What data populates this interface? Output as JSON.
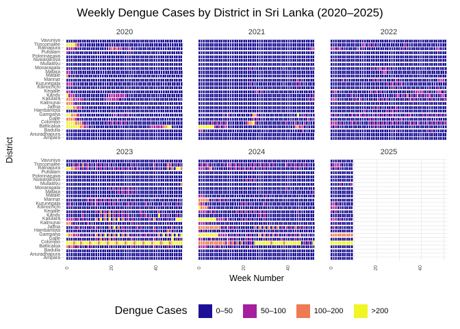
{
  "title": "Weekly Dengue Cases by District in Sri Lanka (2020–2025)",
  "x_axis_label": "Week Number",
  "y_axis_label": "District",
  "x_ticks": [
    "0",
    "20",
    "40"
  ],
  "legend": {
    "title": "Dengue Cases",
    "items": [
      {
        "label": "0–50",
        "color": "#1c1196"
      },
      {
        "label": "50–100",
        "color": "#a51e9d"
      },
      {
        "label": "100–200",
        "color": "#ee7b51"
      },
      {
        "label": ">200",
        "color": "#f0f524"
      }
    ]
  },
  "chart_data": {
    "type": "heatmap",
    "facet_by": "year",
    "x": "week_number",
    "x_range": [
      1,
      52
    ],
    "x_tick_weeks": [
      0,
      20,
      40
    ],
    "x_minor_grid_weeks": [
      0,
      10,
      20,
      30,
      40,
      50
    ],
    "y": "district",
    "grid": true,
    "legend_position": "bottom",
    "districts_top_to_bottom": [
      "Vavuniya",
      "Trincomalee",
      "Ratnapura",
      "Puttalam",
      "Polonnaruwa",
      "NuwaraEliya",
      "Mullaitivu",
      "Monaragala",
      "Matara",
      "Matale",
      "Mannar",
      "Kurunegala",
      "Kilinochchi",
      "Kegalle",
      "Kandy",
      "Kalutara",
      "Kalmunai",
      "Jaffna",
      "Hambantota",
      "Gampaha",
      "Galle",
      "Colombo",
      "Batticaloa",
      "Badulla",
      "Anuradhapura",
      "Ampara"
    ],
    "value_bins": [
      "0–50",
      "50–100",
      "100–200",
      ">200"
    ],
    "bin_colors": {
      "0": "#1c1196",
      "1": "#a51e9d",
      "2": "#ee7b51",
      "3": "#f0f524"
    },
    "encoding": "One character per week per district row: 0 = 0–50 cases, 1 = 50–100, 2 = 100–200, 3 = >200. 2025 has data for weeks 1–10 only.",
    "facets": [
      {
        "year": "2020",
        "rows": [
          "0000000000000000000000000000000000000000000000000000",
          "3333210000000000000000000000000000000000000000000000",
          "1111000000000000000121211001100000000000000000000000",
          "1000000000000000000000000000000000000000000000000000",
          "0000000000000000000000000000000000000000000000000000",
          "0000000000000000000000000000000000000000000000000000",
          "0000000000000000000000000000000000000000000000000000",
          "0000000000000000000000000000000000000000000000000000",
          "1100000000000000000000000000000000000000000000000000",
          "2000000000000000000000000000000000000000000000000000",
          "0000000000000000000000000000000000000000000000000000",
          "1110000000000000000000000000000000000000000000000000",
          "0000000000000000000000000000000000000000000000000000",
          "1100000000000000000000000000000000000000000000000000",
          "3111000000000000000111111110000000000000000000000000",
          "2221111100000000011111110000000000000000000000000000",
          "2221000000000000000000000000000000000000000000000000",
          "3332211000000000000000000000000000000000000000000000",
          "0000000000000000000000000000000000000000000000000000",
          "3322210000000000000001100101000000000000000000000000",
          "2222100000000000000000000000000000000000000000000000",
          "3333222100000000001010101010000000000000000000000000",
          "3333332211000000000000000000000000000111111223300000",
          "0000000000000000000000000000000000000000000000000000",
          "0000000000000000000000000000000000000000000000000000",
          "0000000000000000000000000000000000000000000000000000"
        ]
      },
      {
        "year": "2021",
        "rows": [
          "0000000000000000000000000000000000000000000000000000",
          "0000000000000000000000000000000000000000000000000000",
          "0000000000000000000000000000000000000000000000000011",
          "0000000000000000000000000000000000000000000000000000",
          "0000000000000000000000000000000000000000000000000000",
          "0000000000000000000000000000000000000000000000000000",
          "0000000000000000000000000000000000000000000000000000",
          "0000000000000000000000010000000000000000000000000000",
          "0000000000000000000000000000000000000000000000000000",
          "0000000000000000000000000000000000000000000000000000",
          "0000000000000000000000000000000000000000000010000000",
          "0000000000000000000000010000000000000000000101000000",
          "0000000000000000000000000000000000000000000000000000",
          "0000000000000000000000000110100000000000000000000000",
          "0000000000000000000000000000000000000000000000000001",
          "0000000000000000000000000000000000000000000000000101",
          "0000000000000000000000000000000000000000000000000000",
          "0000000000000000000000000000000000000000000000000000",
          "0000000000000000000000000000000000000000000000000000",
          "0000000000010100000000002210000000000000000030010000",
          "0000000000000000000000001010000000000000000000000100",
          "0000101010101000000001223100000000000001000100010000",
          "3333333101011000000000000000000000000000000221100000",
          "1100000000000000000000000000000000000000000000100000",
          "0000000000000000000000000000000000000000000000000000",
          "0000000000000000000000000000000000000000000000000000"
        ]
      },
      {
        "year": "2022",
        "rows": [
          "0000000000000000000000000000000000000000000000000000",
          "0000000000000011010100000000000001000000000000000000",
          "1101100000001000000000000000000010000000000000011000",
          "0000000000000000000000000000000000000000000000000000",
          "0000000000000000000000000000000000000000000000000000",
          "0000000000000000000000000000000000000000000000000000",
          "0000000000000000000000000000000000000000000000000000",
          "0000000000000000000101101010000000000000000000000000",
          "0000000000000000000000011000000000000000000000000000",
          "0000000000000000000000000000000000000000000000000000",
          "0000010000000000000101000000010000000000000000001110",
          "0000000000000000000000000101010100000000000000000000",
          "0000000000000000000000000000100000000000000000001000",
          "0110000000000000001010100000000000000011110100011100",
          "0000000001000000000000000000011010201010100110000110",
          "1110000000010100000001010100000000010100000101000001",
          "0000000000000000000000000000000000000000000000000000",
          "0000000000000000000101000000010000000000000000000000",
          "0000000000000001000000000101010000000000000000000000",
          "1010000001010101000101010101000001010000010101010100",
          "0000000000000000010100000000010100000000000000000000",
          "1110100001010000010101010101010000010101000101010101",
          "1010000000000000000101000000000000000000000000000000",
          "0000000000000000000000000000010000000000000101000000",
          "0000000000000000000000000000000000000000000000000000",
          "0000000000000000000000000000000000000000000000000000"
        ]
      },
      {
        "year": "2023",
        "rows": [
          "0000000000000000000000000000000000000000000000000000",
          "0001010201000101000100000000010000000001000002100100",
          "3322110101000101010001010101000100000001000002020332",
          "0000000000000000000000000000000000000000000000000000",
          "0000000000000000000000000000000000000000000000000000",
          "0000000000000000000000000000000000000000000000000000",
          "0000000000000000000000000000000000000000000000000002",
          "0000000000000000000101010101010000000000000000000000",
          "0000000000000000000000010101010000000000000000000000",
          "0000000000000000000000000000000000000000000000000000",
          "0000000001010101010100010000000000000000000000000000",
          "0100000000010100000101000001010000010000000100000100",
          "0000000000000000000000000000000000000000000000000000",
          "0000000000000102010201010100000001000000010000000000",
          "0000000100000001020201010101000001010000030100000100",
          "1111010100000203020302030201010000000102000001000333",
          "2210000001000000000100000000010000000000000000000000",
          "0001010000010100000203020100000101000001000000010000",
          "0000000000000000000000000100000000000001000002100000",
          "3221110100010202030202030202010001010100020302030303",
          "0000000000000102010201000000010000000001000000030100",
          "3332332333233323332333233323332333233323332333233333",
          "2121010001010000000100000000010000000001000001000000",
          "0000000000000000000000000000000000000000000000000000",
          "0000000000000000000000000000000000000000000000000000",
          "0000000000000000000000000000000000000000000000000000"
        ]
      },
      {
        "year": "2024",
        "rows": [
          "0000000000000000000000000000000000000000000000000000",
          "0101100000010110101000010101010101000001010101010000",
          "1110120000000010101010101000010000000000000100000000",
          "0000000000000000000000000000000000000000000000000000",
          "0000000000000000000000000000000000000000000000000000",
          "0000000000000000000001010100000000000000000000000000",
          "0000000000000000000000000000000000000000000000000000",
          "0000000000000000000000000000000000000001000000000000",
          "0000000000000000000000000000000000000000000000000001",
          "1110000000000000000000000000001000000000000000000000",
          "2222200101010000000000000000000000000000000000000000",
          "2110000000000000000101000000010000000000000000000000",
          "3222100000000000000000000000000000000000000000000000",
          "1111010100000000010101010101010000000000000010000000",
          "0000000000000000000000000001010000000000000000000000",
          "3333333311110100000101010000010000000000000000000000",
          "1110100000000000000000000000000000000000000000000000",
          "2222222222010101000000000202020202020101010201010000",
          "1010000000000000000000000000000000000000000000000000",
          "3333333331111001010001010002020102010001010102000100",
          "1100010100000101000001010000010000000100000100000000",
          "2222222222221212020201010333333323333323333333010103",
          "1111000101000001000000010000000000000000000000000000",
          "0000000000000000000000000000000000000000000000000000",
          "0000000000000000000000000000000000000000000000000000",
          "0000000000000000000000000000000000000000000000000000"
        ]
      },
      {
        "year": "2025",
        "rows": [
          "0000000000",
          "0111100000",
          "1010000000",
          "0000000000",
          "0000000000",
          "0000000000",
          "0000100001",
          "0000000000",
          "0000000000",
          "0000000000",
          "0000000000",
          "1101000000",
          "1110000000",
          "1010000000",
          "0000000000",
          "1110100000",
          "0000000000",
          "0101000000",
          "0000000000",
          "2222222222",
          "0000000000",
          "3333333333",
          "0000000000",
          "0000000000",
          "0000000000",
          "0000000000"
        ]
      }
    ]
  }
}
